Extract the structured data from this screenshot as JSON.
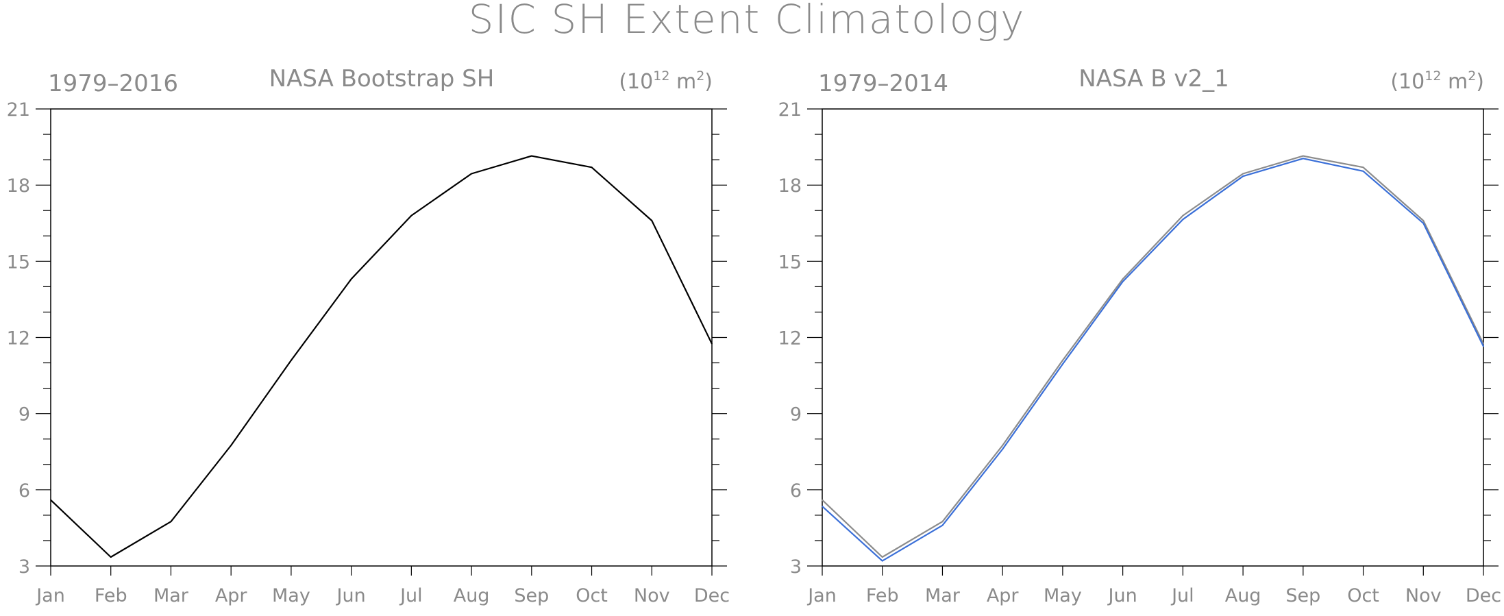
{
  "title": "SIC SH Extent Climatology",
  "panels": [
    {
      "left_label": "1979–2016",
      "center_title": "NASA Bootstrap SH",
      "units": {
        "base": "(10",
        "exp": "12",
        "mid": " m",
        "exp2": "2",
        "end": ")"
      }
    },
    {
      "left_label": "1979–2014",
      "center_title": "NASA B v2_1",
      "units": {
        "base": "(10",
        "exp": "12",
        "mid": " m",
        "exp2": "2",
        "end": ")"
      }
    }
  ],
  "colors": {
    "axis": "#000000",
    "text": "#8a8a8a",
    "black_series": "#000000",
    "gray_series": "#8c8c8c",
    "blue_series": "#3a6fd8"
  },
  "chart_data": [
    {
      "type": "line",
      "title": "NASA Bootstrap SH",
      "categories": [
        "Jan",
        "Feb",
        "Mar",
        "Apr",
        "May",
        "Jun",
        "Jul",
        "Aug",
        "Sep",
        "Oct",
        "Nov",
        "Dec"
      ],
      "yticks": [
        3,
        6,
        9,
        12,
        15,
        18,
        21
      ],
      "ylim": [
        3,
        21
      ],
      "grid": false,
      "series": [
        {
          "color": "#000000",
          "values": [
            5.6,
            3.35,
            4.75,
            7.75,
            11.1,
            14.3,
            16.8,
            18.45,
            19.15,
            18.7,
            16.6,
            11.75
          ]
        }
      ]
    },
    {
      "type": "line",
      "title": "NASA B v2_1",
      "categories": [
        "Jan",
        "Feb",
        "Mar",
        "Apr",
        "May",
        "Jun",
        "Jul",
        "Aug",
        "Sep",
        "Oct",
        "Nov",
        "Dec"
      ],
      "yticks": [
        3,
        6,
        9,
        12,
        15,
        18,
        21
      ],
      "ylim": [
        3,
        21
      ],
      "grid": false,
      "series": [
        {
          "color": "#8c8c8c",
          "values": [
            5.6,
            3.35,
            4.75,
            7.75,
            11.1,
            14.3,
            16.8,
            18.45,
            19.15,
            18.7,
            16.6,
            11.75
          ]
        },
        {
          "color": "#3a6fd8",
          "values": [
            5.35,
            3.2,
            4.6,
            7.6,
            10.95,
            14.2,
            16.65,
            18.35,
            19.05,
            18.55,
            16.5,
            11.65
          ]
        }
      ]
    }
  ]
}
